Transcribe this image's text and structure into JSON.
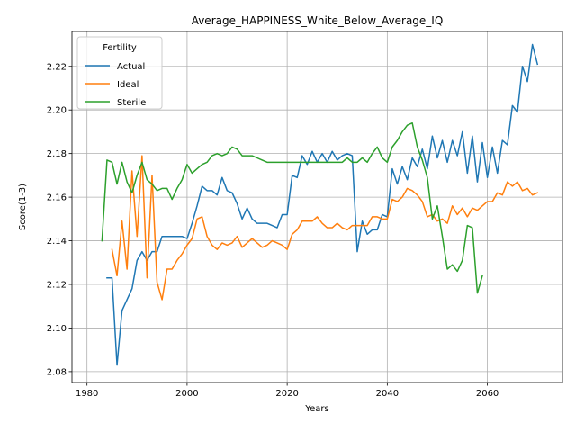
{
  "chart_data": {
    "type": "line",
    "title": "Average_HAPPINESS_White_Below_Average_IQ",
    "xlabel": "Years",
    "ylabel": "Score(1-3)",
    "xlim": [
      1977,
      2075
    ],
    "ylim": [
      2.075,
      2.236
    ],
    "xticks": [
      1980,
      2000,
      2020,
      2040,
      2060
    ],
    "yticks": [
      2.08,
      2.1,
      2.12,
      2.14,
      2.16,
      2.18,
      2.2,
      2.22
    ],
    "xtick_labels": [
      "1980",
      "2000",
      "2020",
      "2040",
      "2060"
    ],
    "ytick_labels": [
      "2.08",
      "2.10",
      "2.12",
      "2.14",
      "2.16",
      "2.18",
      "2.20",
      "2.22"
    ],
    "grid": true,
    "legend": {
      "title": "Fertility",
      "placement": "upper-left"
    },
    "series": [
      {
        "name": "Actual",
        "color": "#1f77b4",
        "x": [
          1984,
          1985,
          1986,
          1987,
          1988,
          1989,
          1990,
          1991,
          1992,
          1993,
          1994,
          1995,
          1996,
          1997,
          1998,
          1999,
          2000,
          2001,
          2002,
          2003,
          2004,
          2005,
          2006,
          2007,
          2008,
          2009,
          2010,
          2011,
          2012,
          2013,
          2014,
          2015,
          2016,
          2017,
          2018,
          2019,
          2020,
          2021,
          2022,
          2023,
          2024,
          2025,
          2026,
          2027,
          2028,
          2029,
          2030,
          2031,
          2032,
          2033,
          2034,
          2035,
          2036,
          2037,
          2038,
          2039,
          2040,
          2041,
          2042,
          2043,
          2044,
          2045,
          2046,
          2047,
          2048,
          2049,
          2050,
          2051,
          2052,
          2053,
          2054,
          2055,
          2056,
          2057,
          2058,
          2059,
          2060,
          2061,
          2062,
          2063,
          2064,
          2065,
          2066,
          2067,
          2068,
          2069,
          2070
        ],
        "y": [
          2.123,
          2.123,
          2.083,
          2.108,
          2.113,
          2.118,
          2.131,
          2.135,
          2.131,
          2.135,
          2.135,
          2.142,
          2.142,
          2.142,
          2.142,
          2.142,
          2.141,
          2.148,
          2.156,
          2.165,
          2.163,
          2.163,
          2.161,
          2.169,
          2.163,
          2.162,
          2.157,
          2.15,
          2.155,
          2.15,
          2.148,
          2.148,
          2.148,
          2.147,
          2.146,
          2.152,
          2.152,
          2.17,
          2.169,
          2.179,
          2.175,
          2.181,
          2.176,
          2.18,
          2.176,
          2.181,
          2.177,
          2.179,
          2.18,
          2.179,
          2.135,
          2.149,
          2.143,
          2.145,
          2.145,
          2.152,
          2.151,
          2.173,
          2.166,
          2.174,
          2.168,
          2.178,
          2.174,
          2.182,
          2.173,
          2.188,
          2.178,
          2.186,
          2.176,
          2.186,
          2.179,
          2.19,
          2.171,
          2.188,
          2.167,
          2.185,
          2.169,
          2.183,
          2.171,
          2.186,
          2.184,
          2.202,
          2.199,
          2.22,
          2.213,
          2.23,
          2.221
        ]
      },
      {
        "name": "Ideal",
        "color": "#ff7f0e",
        "x": [
          1985,
          1986,
          1987,
          1988,
          1989,
          1990,
          1991,
          1992,
          1993,
          1994,
          1995,
          1996,
          1997,
          1998,
          1999,
          2000,
          2001,
          2002,
          2003,
          2004,
          2005,
          2006,
          2007,
          2008,
          2009,
          2010,
          2011,
          2012,
          2013,
          2014,
          2015,
          2016,
          2017,
          2018,
          2019,
          2020,
          2021,
          2022,
          2023,
          2024,
          2025,
          2026,
          2027,
          2028,
          2029,
          2030,
          2031,
          2032,
          2033,
          2034,
          2035,
          2036,
          2037,
          2038,
          2039,
          2040,
          2041,
          2042,
          2043,
          2044,
          2045,
          2046,
          2047,
          2048,
          2049,
          2050,
          2051,
          2052,
          2053,
          2054,
          2055,
          2056,
          2057,
          2058,
          2059,
          2060,
          2061,
          2062,
          2063,
          2064,
          2065,
          2066,
          2067,
          2068,
          2069,
          2070
        ],
        "y": [
          2.136,
          2.124,
          2.149,
          2.127,
          2.172,
          2.142,
          2.179,
          2.123,
          2.17,
          2.121,
          2.113,
          2.127,
          2.127,
          2.131,
          2.134,
          2.138,
          2.141,
          2.15,
          2.151,
          2.142,
          2.138,
          2.136,
          2.139,
          2.138,
          2.139,
          2.142,
          2.137,
          2.139,
          2.141,
          2.139,
          2.137,
          2.138,
          2.14,
          2.139,
          2.138,
          2.136,
          2.143,
          2.145,
          2.149,
          2.149,
          2.149,
          2.151,
          2.148,
          2.146,
          2.146,
          2.148,
          2.146,
          2.145,
          2.147,
          2.147,
          2.147,
          2.147,
          2.151,
          2.151,
          2.15,
          2.15,
          2.159,
          2.158,
          2.16,
          2.164,
          2.163,
          2.161,
          2.158,
          2.151,
          2.152,
          2.149,
          2.15,
          2.148,
          2.156,
          2.152,
          2.155,
          2.151,
          2.155,
          2.154,
          2.156,
          2.158,
          2.158,
          2.162,
          2.161,
          2.167,
          2.165,
          2.167,
          2.163,
          2.164,
          2.161,
          2.162
        ]
      },
      {
        "name": "Sterile",
        "color": "#2ca02c",
        "x": [
          1983,
          1984,
          1985,
          1986,
          1987,
          1988,
          1989,
          1990,
          1991,
          1992,
          1993,
          1994,
          1995,
          1996,
          1997,
          1998,
          1999,
          2000,
          2001,
          2002,
          2003,
          2004,
          2005,
          2006,
          2007,
          2008,
          2009,
          2010,
          2011,
          2012,
          2013,
          2014,
          2015,
          2016,
          2017,
          2018,
          2019,
          2020,
          2021,
          2022,
          2023,
          2024,
          2025,
          2026,
          2027,
          2028,
          2029,
          2030,
          2031,
          2032,
          2033,
          2034,
          2035,
          2036,
          2037,
          2038,
          2039,
          2040,
          2041,
          2042,
          2043,
          2044,
          2045,
          2046,
          2047,
          2048,
          2049,
          2050,
          2051,
          2052,
          2053,
          2054,
          2055,
          2056,
          2057,
          2058,
          2059
        ],
        "y": [
          2.14,
          2.177,
          2.176,
          2.166,
          2.176,
          2.167,
          2.162,
          2.17,
          2.176,
          2.168,
          2.166,
          2.163,
          2.164,
          2.164,
          2.159,
          2.164,
          2.168,
          2.175,
          2.171,
          2.173,
          2.175,
          2.176,
          2.179,
          2.18,
          2.179,
          2.18,
          2.183,
          2.182,
          2.179,
          2.179,
          2.179,
          2.178,
          2.177,
          2.176,
          2.176,
          2.176,
          2.176,
          2.176,
          2.176,
          2.176,
          2.176,
          2.176,
          2.176,
          2.176,
          2.176,
          2.176,
          2.176,
          2.176,
          2.176,
          2.178,
          2.176,
          2.176,
          2.178,
          2.176,
          2.18,
          2.183,
          2.178,
          2.176,
          2.183,
          2.186,
          2.19,
          2.193,
          2.194,
          2.183,
          2.177,
          2.169,
          2.15,
          2.156,
          2.142,
          2.127,
          2.129,
          2.126,
          2.131,
          2.147,
          2.146,
          2.116,
          2.124
        ]
      }
    ]
  }
}
